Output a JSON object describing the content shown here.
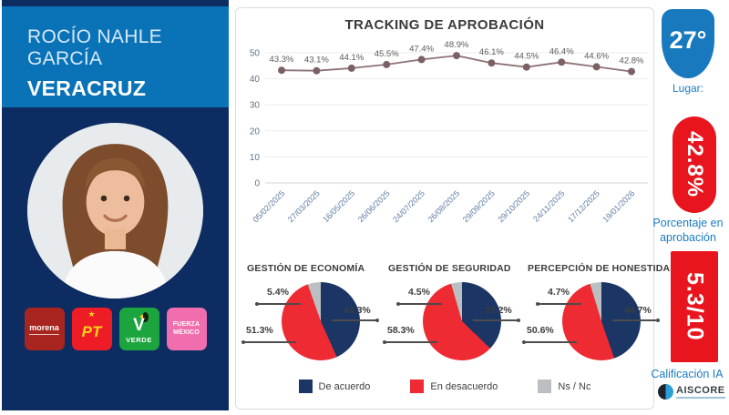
{
  "sidebar": {
    "name": "ROCÍO NAHLE GARCÍA",
    "state": "VERACRUZ",
    "parties": [
      {
        "name": "morena",
        "label": "morena",
        "color": "#a8251f"
      },
      {
        "name": "pt",
        "label": "PT",
        "star": "★",
        "color": "#ee1c25"
      },
      {
        "name": "verde",
        "label": "VERDE",
        "emblem": "V",
        "color": "#1ca43f"
      },
      {
        "name": "fuerza-mexico",
        "label": "FUERZA MÉXICO",
        "color": "#f06eae"
      }
    ]
  },
  "chart_data": [
    {
      "type": "line",
      "title": "TRACKING DE APROBACIÓN",
      "x": [
        "05/02/2025",
        "27/03/2025",
        "16/05/2025",
        "26/06/2025",
        "24/07/2025",
        "26/08/2025",
        "29/09/2025",
        "29/10/2025",
        "24/11/2025",
        "17/12/2025",
        "19/01/2026"
      ],
      "values": [
        43.3,
        43.1,
        44.1,
        45.5,
        47.4,
        48.9,
        46.1,
        44.5,
        46.4,
        44.6,
        42.8
      ],
      "point_labels": [
        "43.3%",
        "43.1%",
        "44.1%",
        "45.5%",
        "47.4%",
        "48.9%",
        "46.1%",
        "44.5%",
        "46.4%",
        "44.6%",
        "42.8%"
      ],
      "ylim": [
        0,
        50
      ],
      "yticks": [
        0,
        10,
        20,
        30,
        40,
        50
      ],
      "grid": true,
      "line_color": "#8d7277",
      "marker_color": "#7b6064",
      "xlabel": "",
      "ylabel": ""
    },
    {
      "type": "pie",
      "title": "GESTIÓN DE ECONOMÍA",
      "labels": [
        "De acuerdo",
        "En desacuerdo",
        "Ns / Nc"
      ],
      "values": [
        43.3,
        51.3,
        5.4
      ],
      "display": [
        "43.3%",
        "51.3%",
        "5.4%"
      ],
      "colors": [
        "#1b3664",
        "#ee2b33",
        "#bcbfc1"
      ]
    },
    {
      "type": "pie",
      "title": "GESTIÓN DE SEGURIDAD",
      "labels": [
        "De acuerdo",
        "En desacuerdo",
        "Ns / Nc"
      ],
      "values": [
        37.2,
        58.3,
        4.5
      ],
      "display": [
        "37.2%",
        "58.3%",
        "4.5%"
      ],
      "colors": [
        "#1b3664",
        "#ee2b33",
        "#bcbfc1"
      ]
    },
    {
      "type": "pie",
      "title": "PERCEPCIÓN DE HONESTIDAD",
      "labels": [
        "De acuerdo",
        "En desacuerdo",
        "Ns / Nc"
      ],
      "values": [
        44.7,
        50.6,
        4.7
      ],
      "display": [
        "44.7%",
        "50.6%",
        "4.7%"
      ],
      "colors": [
        "#1b3664",
        "#ee2b33",
        "#bcbfc1"
      ]
    }
  ],
  "legend": [
    {
      "label": "De acuerdo",
      "color": "#1b3664"
    },
    {
      "label": "En desacuerdo",
      "color": "#ee2b33"
    },
    {
      "label": "Ns / Nc",
      "color": "#bcbfc1"
    }
  ],
  "right_panel": {
    "temperature": "27°",
    "temperature_caption": "Lugar:",
    "approval_value": "42.8%",
    "approval_caption": "Porcentaje en aprobación",
    "ia_score": "5.3/10",
    "ia_caption": "Calificación IA",
    "logo_text": "AISCORE"
  },
  "colors": {
    "sidebar_blue": "#0a73b8",
    "sidebar_navy": "#0d2c62",
    "badge_blue": "#1879bf",
    "badge_red": "#e8141e",
    "caption_blue": "#1a7cc0"
  }
}
